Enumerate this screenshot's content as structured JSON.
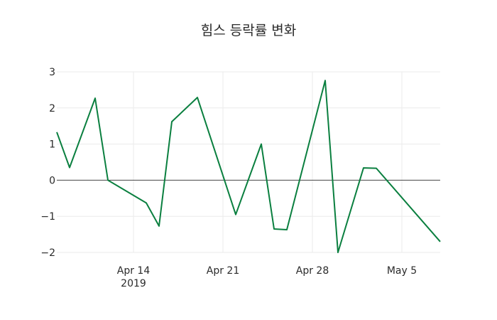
{
  "chart_data": {
    "type": "line",
    "title": "힘스 등락률 변화",
    "xlabel": "",
    "ylabel": "",
    "x": [
      "2019-04-08",
      "2019-04-09",
      "2019-04-11",
      "2019-04-12",
      "2019-04-15",
      "2019-04-16",
      "2019-04-17",
      "2019-04-19",
      "2019-04-22",
      "2019-04-24",
      "2019-04-25",
      "2019-04-26",
      "2019-04-29",
      "2019-04-30",
      "2019-05-02",
      "2019-05-03",
      "2019-05-08"
    ],
    "series": [
      {
        "name": "등락률",
        "color": "#0a7f3f",
        "values": [
          1.33,
          0.35,
          2.27,
          0.0,
          -0.63,
          -1.27,
          1.62,
          2.29,
          -0.95,
          1.0,
          -1.35,
          -1.37,
          2.76,
          -2.0,
          0.34,
          0.33,
          -1.7
        ]
      }
    ],
    "xlim": [
      "2019-04-08",
      "2019-05-08"
    ],
    "ylim": [
      -2.2,
      3.0
    ],
    "x_ticks": [
      {
        "date": "2019-04-14",
        "label": "Apr 14",
        "sublabel": "2019"
      },
      {
        "date": "2019-04-21",
        "label": "Apr 21",
        "sublabel": ""
      },
      {
        "date": "2019-04-28",
        "label": "Apr 28",
        "sublabel": ""
      },
      {
        "date": "2019-05-05",
        "label": "May 5",
        "sublabel": ""
      }
    ],
    "y_ticks": [
      {
        "value": 3,
        "label": "3"
      },
      {
        "value": 2,
        "label": "2"
      },
      {
        "value": 1,
        "label": "1"
      },
      {
        "value": 0,
        "label": "0"
      },
      {
        "value": -1,
        "label": "−1"
      },
      {
        "value": -2,
        "label": "−2"
      }
    ],
    "grid": true,
    "zero_line": true,
    "legend": "none"
  }
}
